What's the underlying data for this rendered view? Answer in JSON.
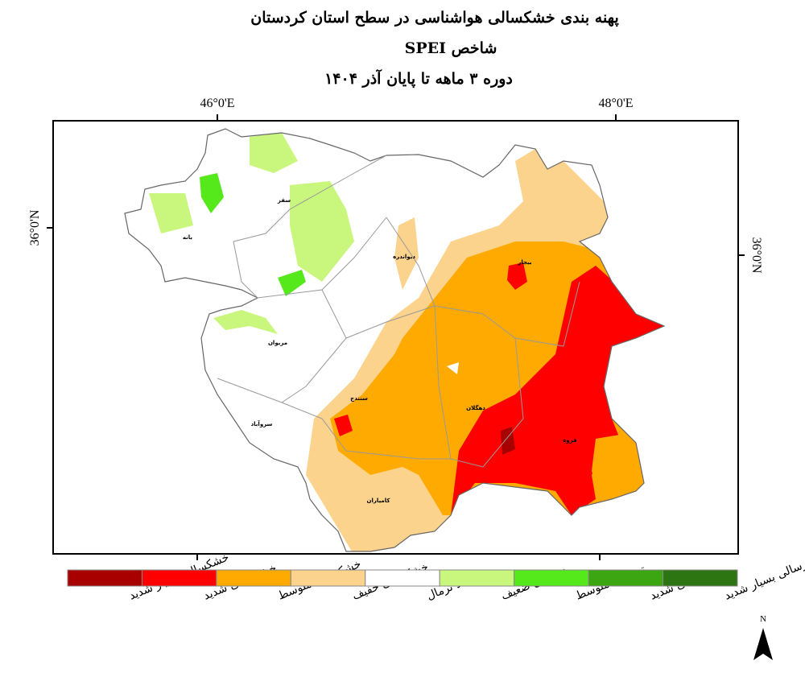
{
  "title": {
    "line1": "پهنه بندی خشکسالی هواشناسی در سطح استان کردستان",
    "line2": "شاخص SPEI",
    "line3": "دوره  ۳  ماهه تا پایان  آذر  ۱۴۰۴"
  },
  "map": {
    "coords": {
      "lon_left": "46°0'E",
      "lon_right": "48°0'E",
      "lat_left": "36°0'N",
      "lat_right": "36°0'N"
    },
    "cities": [
      "بانه",
      "سقز",
      "دیواندره",
      "بیجار",
      "مریوان",
      "سنندج",
      "دهگلان",
      "قروه",
      "سروآباد",
      "کامیاران"
    ]
  },
  "legend": {
    "items": [
      {
        "label": "خشکسالی بسیار شدید",
        "color": "#a80000"
      },
      {
        "label": "خشکسالی شدید",
        "color": "#ff0000"
      },
      {
        "label": "خشکسالی متوسط",
        "color": "#ffaa00"
      },
      {
        "label": "خشکسالی خفیف",
        "color": "#fcd38d"
      },
      {
        "label": "در حد نرمال",
        "color": "#ffffff"
      },
      {
        "label": "ترسالی ضعیف",
        "color": "#c9f77d"
      },
      {
        "label": "ترسالی متوسط",
        "color": "#55e81a"
      },
      {
        "label": "ترسالی شدید",
        "color": "#3ca612"
      },
      {
        "label": "ترسالی بسیار شدید",
        "color": "#2d7512"
      }
    ]
  },
  "north": "N"
}
